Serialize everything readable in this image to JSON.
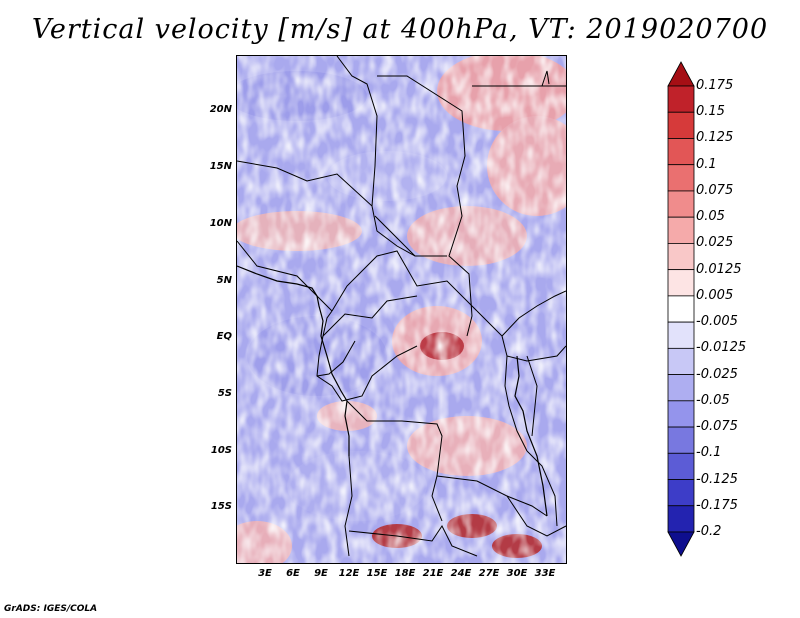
{
  "title": "Vertical velocity [m/s] at 400hPa, VT: 2019020700",
  "credit": "GrADS: IGES/COLA",
  "lat_labels": [
    "20N",
    "15N",
    "10N",
    "5N",
    "EQ",
    "5S",
    "10S",
    "15S"
  ],
  "lon_labels": [
    "3E",
    "6E",
    "9E",
    "12E",
    "15E",
    "18E",
    "21E",
    "24E",
    "27E",
    "30E",
    "33E"
  ],
  "colorbar": {
    "labels": [
      "0.175",
      "0.15",
      "0.125",
      "0.1",
      "0.075",
      "0.05",
      "0.025",
      "0.0125",
      "0.005",
      "-0.005",
      "-0.0125",
      "-0.025",
      "-0.05",
      "-0.075",
      "-0.1",
      "-0.125",
      "-0.175",
      "-0.2"
    ],
    "colors": [
      "#a50f15",
      "#c0222a",
      "#d63a3a",
      "#e25656",
      "#ea7070",
      "#f08c8c",
      "#f5aaaa",
      "#f9c8c8",
      "#fde4e4",
      "#ffffff",
      "#e2e2fb",
      "#c8c8f6",
      "#aeaef1",
      "#9494ec",
      "#7878e0",
      "#5c5cd6",
      "#3d3dc8",
      "#2323b0",
      "#0e0e8e"
    ]
  }
}
